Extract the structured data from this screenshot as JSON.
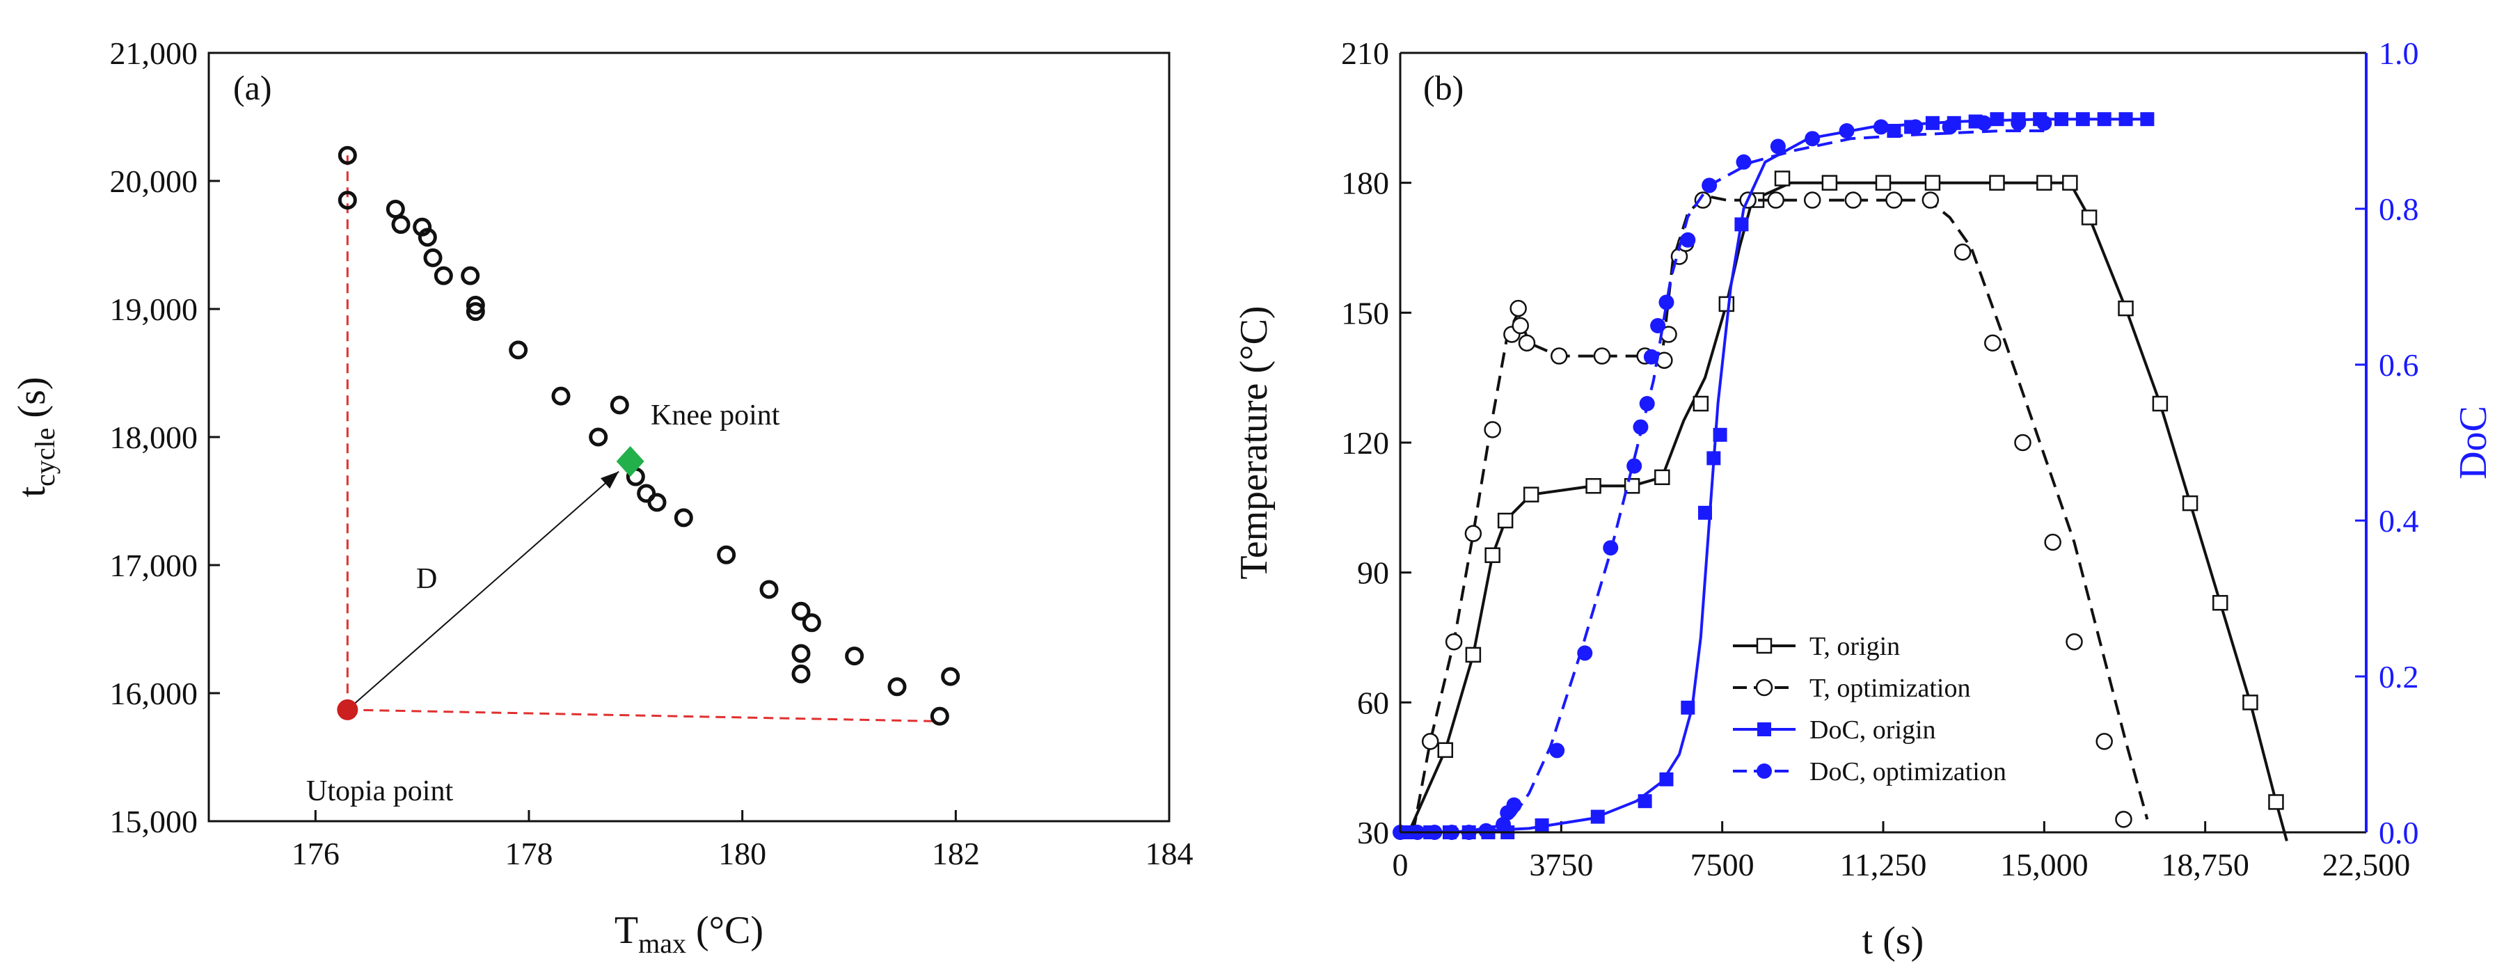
{
  "chart_data": [
    {
      "panel": "(a)",
      "type": "scatter",
      "xlabel": "T",
      "xlabel_sub": "max",
      "xlabel_unit": " (°C)",
      "ylabel": "t",
      "ylabel_sub": "cycle",
      "ylabel_unit": " (s)",
      "xlim": [
        175,
        184
      ],
      "ylim": [
        15000,
        21000
      ],
      "xticks": [
        176,
        178,
        180,
        182,
        184
      ],
      "yticks": [
        15000,
        16000,
        17000,
        18000,
        19000,
        20000,
        21000
      ],
      "xtick_labels": [
        "176",
        "178",
        "180",
        "182",
        "184"
      ],
      "ytick_labels": [
        "15,000",
        "16,000",
        "17,000",
        "18,000",
        "19,000",
        "20,000",
        "21,000"
      ],
      "points": [
        [
          176.3,
          20200
        ],
        [
          176.3,
          19850
        ],
        [
          176.75,
          19780
        ],
        [
          176.8,
          19660
        ],
        [
          177.0,
          19640
        ],
        [
          177.05,
          19560
        ],
        [
          177.1,
          19400
        ],
        [
          177.2,
          19260
        ],
        [
          177.45,
          19260
        ],
        [
          177.5,
          19030
        ],
        [
          177.5,
          18980
        ],
        [
          177.9,
          18680
        ],
        [
          178.3,
          18320
        ],
        [
          178.85,
          18250
        ],
        [
          178.65,
          18000
        ],
        [
          179.0,
          17690
        ],
        [
          179.1,
          17560
        ],
        [
          179.2,
          17490
        ],
        [
          179.45,
          17370
        ],
        [
          179.85,
          17080
        ],
        [
          180.25,
          16810
        ],
        [
          180.55,
          16640
        ],
        [
          180.65,
          16550
        ],
        [
          180.55,
          16310
        ],
        [
          180.55,
          16150
        ],
        [
          181.05,
          16290
        ],
        [
          181.45,
          16050
        ],
        [
          181.85,
          15820
        ],
        [
          181.95,
          16130
        ]
      ],
      "knee_point": {
        "label": "Knee point",
        "x": 178.95,
        "y": 17810,
        "color": "#22b04a"
      },
      "utopia_point": {
        "label": "Utopia point",
        "x": 176.3,
        "y": 15870,
        "color": "#cc1f1f"
      },
      "distance_label": "D",
      "extreme_top": [
        176.3,
        20200
      ],
      "extreme_right": [
        181.85,
        15780
      ]
    },
    {
      "panel": "(b)",
      "type": "line",
      "xlabel": "t (s)",
      "ylabel_left": "Temperature (°C)",
      "ylabel_right": "DoC",
      "xlim": [
        0,
        22500
      ],
      "ylim_left": [
        30,
        210
      ],
      "ylim_right": [
        0,
        1
      ],
      "xticks": [
        0,
        3750,
        7500,
        11250,
        15000,
        18750,
        22500
      ],
      "xtick_labels": [
        "0",
        "3750",
        "7500",
        "11,250",
        "15,000",
        "18,750",
        "22,500"
      ],
      "yticks_left": [
        30,
        60,
        90,
        120,
        150,
        180,
        210
      ],
      "ytick_labels_left": [
        "30",
        "60",
        "90",
        "120",
        "150",
        "180",
        "210"
      ],
      "yticks_right": [
        0,
        0.2,
        0.4,
        0.6,
        0.8,
        1.0
      ],
      "ytick_labels_right": [
        "0.0",
        "0.2",
        "0.4",
        "0.6",
        "0.8",
        "1.0"
      ],
      "legend": {
        "position": "lower-center",
        "entries": [
          {
            "label": "T, origin",
            "series": 0
          },
          {
            "label": "T, optimization",
            "series": 1
          },
          {
            "label": "DoC, origin",
            "series": 2
          },
          {
            "label": "DoC, optimization",
            "series": 3
          }
        ]
      },
      "series": [
        {
          "name": "T, origin",
          "axis": "left",
          "color": "#111111",
          "dash": "solid",
          "marker": "square-open",
          "points": [
            [
              200,
              30
            ],
            [
              1050,
              49
            ],
            [
              1700,
              71
            ],
            [
              2150,
              94
            ],
            [
              2450,
              102
            ],
            [
              3050,
              108
            ],
            [
              4500,
              110
            ],
            [
              5400,
              110
            ],
            [
              6100,
              112
            ],
            [
              6600,
              125
            ],
            [
              7100,
              135
            ],
            [
              7600,
              152
            ],
            [
              7900,
              165
            ],
            [
              8200,
              176
            ],
            [
              9100,
              180
            ],
            [
              10000,
              180
            ],
            [
              11500,
              180
            ],
            [
              12800,
              180
            ],
            [
              14000,
              180
            ],
            [
              15000,
              180
            ],
            [
              15600,
              180
            ],
            [
              16050,
              172
            ],
            [
              16900,
              151
            ],
            [
              17700,
              129
            ],
            [
              18400,
              106
            ],
            [
              19100,
              83
            ],
            [
              19800,
              60
            ],
            [
              20400,
              37
            ],
            [
              20650,
              28
            ]
          ],
          "marker_points": [
            [
              1050,
              49
            ],
            [
              1700,
              71
            ],
            [
              2150,
              94
            ],
            [
              2450,
              102
            ],
            [
              3050,
              108
            ],
            [
              4500,
              110
            ],
            [
              5400,
              110
            ],
            [
              6100,
              112
            ],
            [
              7000,
              129
            ],
            [
              7600,
              152
            ],
            [
              8300,
              176
            ],
            [
              8900,
              181
            ],
            [
              10000,
              180
            ],
            [
              11250,
              180
            ],
            [
              12400,
              180
            ],
            [
              13900,
              180
            ],
            [
              15000,
              180
            ],
            [
              15600,
              180
            ],
            [
              16050,
              172
            ],
            [
              16900,
              151
            ],
            [
              17700,
              129
            ],
            [
              18400,
              106
            ],
            [
              19100,
              83
            ],
            [
              19800,
              60
            ],
            [
              20400,
              37
            ]
          ]
        },
        {
          "name": "T, optimization",
          "axis": "left",
          "color": "#111111",
          "dash": "dashed",
          "marker": "circle-open",
          "points": [
            [
              300,
              30
            ],
            [
              700,
              51
            ],
            [
              1250,
              74
            ],
            [
              1700,
              99
            ],
            [
              2100,
              123
            ],
            [
              2500,
              145
            ],
            [
              2750,
              150
            ],
            [
              3000,
              143
            ],
            [
              3700,
              140
            ],
            [
              4800,
              140
            ],
            [
              5600,
              140
            ],
            [
              6100,
              140
            ],
            [
              6350,
              162
            ],
            [
              6700,
              173
            ],
            [
              7100,
              177
            ],
            [
              7600,
              176
            ],
            [
              8500,
              176
            ],
            [
              10000,
              176
            ],
            [
              11500,
              176
            ],
            [
              12300,
              176
            ],
            [
              12800,
              172
            ],
            [
              13300,
              165
            ],
            [
              14100,
              143
            ],
            [
              14900,
              120
            ],
            [
              15700,
              97
            ],
            [
              16300,
              74
            ],
            [
              16900,
              51
            ],
            [
              17400,
              33
            ]
          ],
          "marker_points": [
            [
              700,
              51
            ],
            [
              1250,
              74
            ],
            [
              1700,
              99
            ],
            [
              2150,
              123
            ],
            [
              2600,
              145
            ],
            [
              2750,
              151
            ],
            [
              2800,
              147
            ],
            [
              2950,
              143
            ],
            [
              3700,
              140
            ],
            [
              4700,
              140
            ],
            [
              5700,
              140
            ],
            [
              6150,
              139
            ],
            [
              6250,
              145
            ],
            [
              6500,
              163
            ],
            [
              6650,
              166
            ],
            [
              7050,
              176
            ],
            [
              8100,
              176
            ],
            [
              8750,
              176
            ],
            [
              9600,
              176
            ],
            [
              10550,
              176
            ],
            [
              11500,
              176
            ],
            [
              12350,
              176
            ],
            [
              13100,
              164
            ],
            [
              13800,
              143
            ],
            [
              14500,
              120
            ],
            [
              15200,
              97
            ],
            [
              15700,
              74
            ],
            [
              16400,
              51
            ],
            [
              16850,
              33
            ]
          ]
        },
        {
          "name": "DoC, origin",
          "axis": "right",
          "color": "#1a1aff",
          "dash": "solid",
          "marker": "square-filled",
          "points": [
            [
              0,
              0
            ],
            [
              1500,
              0.001
            ],
            [
              3000,
              0.005
            ],
            [
              4500,
              0.018
            ],
            [
              5500,
              0.04
            ],
            [
              6100,
              0.065
            ],
            [
              6500,
              0.1
            ],
            [
              6800,
              0.16
            ],
            [
              7000,
              0.25
            ],
            [
              7200,
              0.4
            ],
            [
              7400,
              0.55
            ],
            [
              7700,
              0.7
            ],
            [
              8000,
              0.8
            ],
            [
              8500,
              0.86
            ],
            [
              9500,
              0.89
            ],
            [
              11000,
              0.905
            ],
            [
              13000,
              0.912
            ],
            [
              15000,
              0.915
            ],
            [
              17500,
              0.915
            ]
          ],
          "marker_points": [
            [
              200,
              0
            ],
            [
              700,
              0
            ],
            [
              1150,
              0
            ],
            [
              1600,
              0
            ],
            [
              2050,
              0
            ],
            [
              2500,
              0
            ],
            [
              3300,
              0.009
            ],
            [
              4600,
              0.02
            ],
            [
              5700,
              0.04
            ],
            [
              6200,
              0.068
            ],
            [
              6700,
              0.16
            ],
            [
              7100,
              0.41
            ],
            [
              7300,
              0.48
            ],
            [
              7450,
              0.51
            ],
            [
              7950,
              0.78
            ],
            [
              11500,
              0.9
            ],
            [
              11900,
              0.905
            ],
            [
              12400,
              0.91
            ],
            [
              12900,
              0.91
            ],
            [
              13400,
              0.912
            ],
            [
              13900,
              0.915
            ],
            [
              14400,
              0.915
            ],
            [
              14900,
              0.915
            ],
            [
              15400,
              0.915
            ],
            [
              15900,
              0.915
            ],
            [
              16400,
              0.915
            ],
            [
              16900,
              0.915
            ],
            [
              17400,
              0.915
            ]
          ]
        },
        {
          "name": "DoC, optimization",
          "axis": "right",
          "color": "#1a1aff",
          "dash": "dashed",
          "marker": "circle-filled",
          "points": [
            [
              0,
              0
            ],
            [
              1500,
              0.001
            ],
            [
              2500,
              0.01
            ],
            [
              3000,
              0.05
            ],
            [
              3500,
              0.11
            ],
            [
              4200,
              0.23
            ],
            [
              4900,
              0.36
            ],
            [
              5500,
              0.49
            ],
            [
              5900,
              0.58
            ],
            [
              6300,
              0.71
            ],
            [
              6700,
              0.79
            ],
            [
              7200,
              0.83
            ],
            [
              8200,
              0.86
            ],
            [
              9200,
              0.875
            ],
            [
              10500,
              0.89
            ],
            [
              12000,
              0.895
            ],
            [
              14000,
              0.9
            ],
            [
              15000,
              0.9
            ]
          ],
          "marker_points": [
            [
              0,
              0
            ],
            [
              400,
              0
            ],
            [
              800,
              0
            ],
            [
              1200,
              0
            ],
            [
              1600,
              0
            ],
            [
              2000,
              0.002
            ],
            [
              2400,
              0.01
            ],
            [
              2500,
              0.025
            ],
            [
              2650,
              0.035
            ],
            [
              3650,
              0.105
            ],
            [
              4300,
              0.23
            ],
            [
              4900,
              0.365
            ],
            [
              5450,
              0.47
            ],
            [
              5600,
              0.52
            ],
            [
              5750,
              0.55
            ],
            [
              5850,
              0.61
            ],
            [
              6000,
              0.65
            ],
            [
              6200,
              0.68
            ],
            [
              6700,
              0.76
            ],
            [
              7200,
              0.83
            ],
            [
              8000,
              0.86
            ],
            [
              8800,
              0.88
            ],
            [
              9600,
              0.89
            ],
            [
              10400,
              0.9
            ],
            [
              11200,
              0.905
            ],
            [
              12000,
              0.905
            ],
            [
              12800,
              0.905
            ],
            [
              13600,
              0.91
            ],
            [
              14400,
              0.91
            ],
            [
              15000,
              0.91
            ]
          ]
        }
      ]
    }
  ]
}
